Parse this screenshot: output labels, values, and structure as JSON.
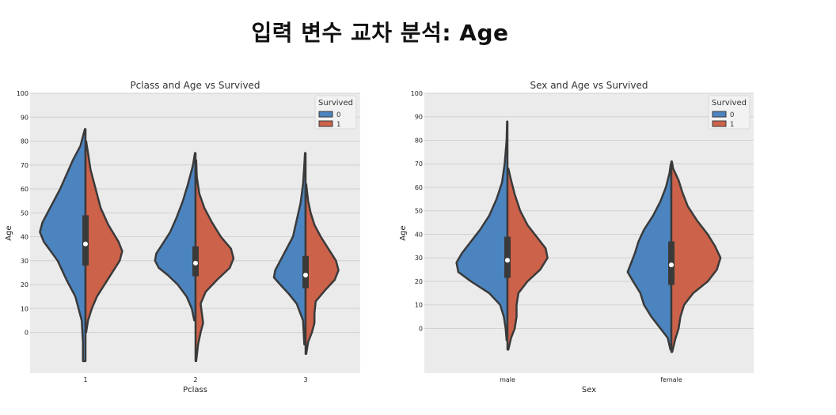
{
  "page": {
    "title": "입력 변수 교차 분석: Age"
  },
  "colors": {
    "survived_0": "#4c84c0",
    "survived_1": "#cc6249",
    "background": "#ebebeb",
    "grid": "#d2d2d2",
    "outline": "#3a3a3a"
  },
  "chart_data": [
    {
      "type": "violin",
      "title": "Pclass and Age vs Survived",
      "xlabel": "Pclass",
      "ylabel": "Age",
      "categories": [
        "1",
        "2",
        "3"
      ],
      "yticks": [
        0,
        10,
        20,
        30,
        40,
        50,
        60,
        70,
        80,
        90,
        100
      ],
      "ylim": [
        -17,
        100
      ],
      "grid": true,
      "legend": {
        "title": "Survived",
        "entries": [
          "0",
          "1"
        ],
        "position": "top-right"
      },
      "split": true,
      "series": [
        {
          "name": "0",
          "violins": [
            {
              "category": "1",
              "profile": [
                [
                  -12,
                  0.02
                ],
                [
                  -4,
                  0.02
                ],
                [
                  5,
                  0.03
                ],
                [
                  15,
                  0.08
                ],
                [
                  22,
                  0.15
                ],
                [
                  30,
                  0.22
                ],
                [
                  38,
                  0.33
                ],
                [
                  42,
                  0.36
                ],
                [
                  46,
                  0.34
                ],
                [
                  52,
                  0.28
                ],
                [
                  60,
                  0.2
                ],
                [
                  66,
                  0.15
                ],
                [
                  72,
                  0.1
                ],
                [
                  78,
                  0.04
                ],
                [
                  82,
                  0.02
                ],
                [
                  85,
                  0.005
                ]
              ]
            },
            {
              "category": "2",
              "profile": [
                [
                  5,
                  0.01
                ],
                [
                  10,
                  0.03
                ],
                [
                  15,
                  0.07
                ],
                [
                  20,
                  0.14
                ],
                [
                  24,
                  0.22
                ],
                [
                  27,
                  0.29
                ],
                [
                  30,
                  0.32
                ],
                [
                  33,
                  0.31
                ],
                [
                  37,
                  0.26
                ],
                [
                  42,
                  0.2
                ],
                [
                  48,
                  0.15
                ],
                [
                  55,
                  0.1
                ],
                [
                  62,
                  0.06
                ],
                [
                  70,
                  0.02
                ],
                [
                  75,
                  0.005
                ]
              ]
            },
            {
              "category": "3",
              "profile": [
                [
                  -5,
                  0.01
                ],
                [
                  5,
                  0.02
                ],
                [
                  12,
                  0.07
                ],
                [
                  16,
                  0.13
                ],
                [
                  20,
                  0.2
                ],
                [
                  23,
                  0.25
                ],
                [
                  26,
                  0.24
                ],
                [
                  30,
                  0.2
                ],
                [
                  35,
                  0.15
                ],
                [
                  40,
                  0.1
                ],
                [
                  47,
                  0.07
                ],
                [
                  54,
                  0.04
                ],
                [
                  62,
                  0.02
                ],
                [
                  70,
                  0.01
                ],
                [
                  75,
                  0.005
                ]
              ]
            }
          ]
        },
        {
          "name": "1",
          "violins": [
            {
              "category": "1",
              "profile": [
                [
                  0,
                  0.005
                ],
                [
                  5,
                  0.02
                ],
                [
                  10,
                  0.05
                ],
                [
                  15,
                  0.09
                ],
                [
                  20,
                  0.15
                ],
                [
                  25,
                  0.21
                ],
                [
                  30,
                  0.27
                ],
                [
                  34,
                  0.29
                ],
                [
                  38,
                  0.26
                ],
                [
                  45,
                  0.18
                ],
                [
                  52,
                  0.12
                ],
                [
                  60,
                  0.08
                ],
                [
                  68,
                  0.04
                ],
                [
                  75,
                  0.02
                ],
                [
                  80,
                  0.005
                ]
              ]
            },
            {
              "category": "2",
              "profile": [
                [
                  -12,
                  0.005
                ],
                [
                  -5,
                  0.02
                ],
                [
                  0,
                  0.04
                ],
                [
                  4,
                  0.06
                ],
                [
                  8,
                  0.05
                ],
                [
                  12,
                  0.04
                ],
                [
                  17,
                  0.08
                ],
                [
                  22,
                  0.17
                ],
                [
                  27,
                  0.27
                ],
                [
                  31,
                  0.3
                ],
                [
                  35,
                  0.28
                ],
                [
                  40,
                  0.2
                ],
                [
                  46,
                  0.13
                ],
                [
                  52,
                  0.07
                ],
                [
                  58,
                  0.03
                ],
                [
                  65,
                  0.01
                ],
                [
                  72,
                  0.005
                ]
              ]
            },
            {
              "category": "3",
              "profile": [
                [
                  -9,
                  0.005
                ],
                [
                  -4,
                  0.02
                ],
                [
                  0,
                  0.05
                ],
                [
                  4,
                  0.07
                ],
                [
                  8,
                  0.07
                ],
                [
                  13,
                  0.08
                ],
                [
                  18,
                  0.16
                ],
                [
                  22,
                  0.23
                ],
                [
                  26,
                  0.26
                ],
                [
                  30,
                  0.24
                ],
                [
                  35,
                  0.18
                ],
                [
                  40,
                  0.12
                ],
                [
                  45,
                  0.07
                ],
                [
                  50,
                  0.04
                ],
                [
                  55,
                  0.02
                ],
                [
                  62,
                  0.005
                ]
              ]
            }
          ]
        }
      ],
      "box": [
        {
          "category": "1",
          "q1": 28,
          "median": 37,
          "q3": 49,
          "whisker_low": 3,
          "whisker_high": 84
        },
        {
          "category": "2",
          "q1": 23.5,
          "median": 29,
          "q3": 36,
          "whisker_low": 3,
          "whisker_high": 70
        },
        {
          "category": "3",
          "q1": 18.5,
          "median": 24,
          "q3": 32,
          "whisker_low": -5,
          "whisker_high": 50
        }
      ]
    },
    {
      "type": "violin",
      "title": "Sex and Age vs Survived",
      "xlabel": "Sex",
      "ylabel": "Age",
      "categories": [
        "male",
        "female"
      ],
      "yticks": [
        0,
        10,
        20,
        30,
        40,
        50,
        60,
        70,
        80,
        90,
        100
      ],
      "ylim": [
        -19,
        100
      ],
      "grid": true,
      "legend": {
        "title": "Survived",
        "entries": [
          "0",
          "1"
        ],
        "position": "top-right"
      },
      "split": true,
      "series": [
        {
          "name": "0",
          "violins": [
            {
              "category": "male",
              "profile": [
                [
                  -5,
                  0.005
                ],
                [
                  0,
                  0.01
                ],
                [
                  5,
                  0.02
                ],
                [
                  10,
                  0.04
                ],
                [
                  15,
                  0.1
                ],
                [
                  20,
                  0.2
                ],
                [
                  24,
                  0.27
                ],
                [
                  28,
                  0.28
                ],
                [
                  32,
                  0.25
                ],
                [
                  37,
                  0.2
                ],
                [
                  42,
                  0.15
                ],
                [
                  48,
                  0.1
                ],
                [
                  55,
                  0.06
                ],
                [
                  62,
                  0.03
                ],
                [
                  70,
                  0.015
                ],
                [
                  80,
                  0.005
                ],
                [
                  88,
                  0.002
                ]
              ]
            },
            {
              "category": "female",
              "profile": [
                [
                  -9,
                  0.005
                ],
                [
                  -4,
                  0.02
                ],
                [
                  0,
                  0.06
                ],
                [
                  5,
                  0.11
                ],
                [
                  10,
                  0.15
                ],
                [
                  15,
                  0.17
                ],
                [
                  20,
                  0.21
                ],
                [
                  24,
                  0.24
                ],
                [
                  28,
                  0.22
                ],
                [
                  32,
                  0.2
                ],
                [
                  37,
                  0.18
                ],
                [
                  42,
                  0.15
                ],
                [
                  48,
                  0.1
                ],
                [
                  54,
                  0.06
                ],
                [
                  60,
                  0.03
                ],
                [
                  66,
                  0.01
                ],
                [
                  70,
                  0.003
                ]
              ]
            }
          ]
        },
        {
          "name": "1",
          "violins": [
            {
              "category": "male",
              "profile": [
                [
                  -9,
                  0.005
                ],
                [
                  -4,
                  0.02
                ],
                [
                  0,
                  0.04
                ],
                [
                  5,
                  0.05
                ],
                [
                  10,
                  0.05
                ],
                [
                  15,
                  0.06
                ],
                [
                  20,
                  0.11
                ],
                [
                  25,
                  0.18
                ],
                [
                  30,
                  0.22
                ],
                [
                  34,
                  0.21
                ],
                [
                  38,
                  0.17
                ],
                [
                  44,
                  0.11
                ],
                [
                  50,
                  0.07
                ],
                [
                  57,
                  0.04
                ],
                [
                  63,
                  0.02
                ],
                [
                  68,
                  0.005
                ]
              ]
            },
            {
              "category": "female",
              "profile": [
                [
                  -10,
                  0.005
                ],
                [
                  -5,
                  0.02
                ],
                [
                  0,
                  0.04
                ],
                [
                  5,
                  0.05
                ],
                [
                  10,
                  0.07
                ],
                [
                  15,
                  0.12
                ],
                [
                  20,
                  0.2
                ],
                [
                  25,
                  0.25
                ],
                [
                  30,
                  0.27
                ],
                [
                  35,
                  0.24
                ],
                [
                  40,
                  0.2
                ],
                [
                  46,
                  0.14
                ],
                [
                  52,
                  0.09
                ],
                [
                  58,
                  0.06
                ],
                [
                  63,
                  0.04
                ],
                [
                  68,
                  0.01
                ],
                [
                  71,
                  0.003
                ]
              ]
            }
          ]
        }
      ],
      "box": [
        {
          "category": "male",
          "q1": 21.5,
          "median": 29,
          "q3": 39,
          "whisker_low": 0,
          "whisker_high": 76
        },
        {
          "category": "female",
          "q1": 18.5,
          "median": 27,
          "q3": 37,
          "whisker_low": 0,
          "whisker_high": 63
        }
      ]
    }
  ]
}
